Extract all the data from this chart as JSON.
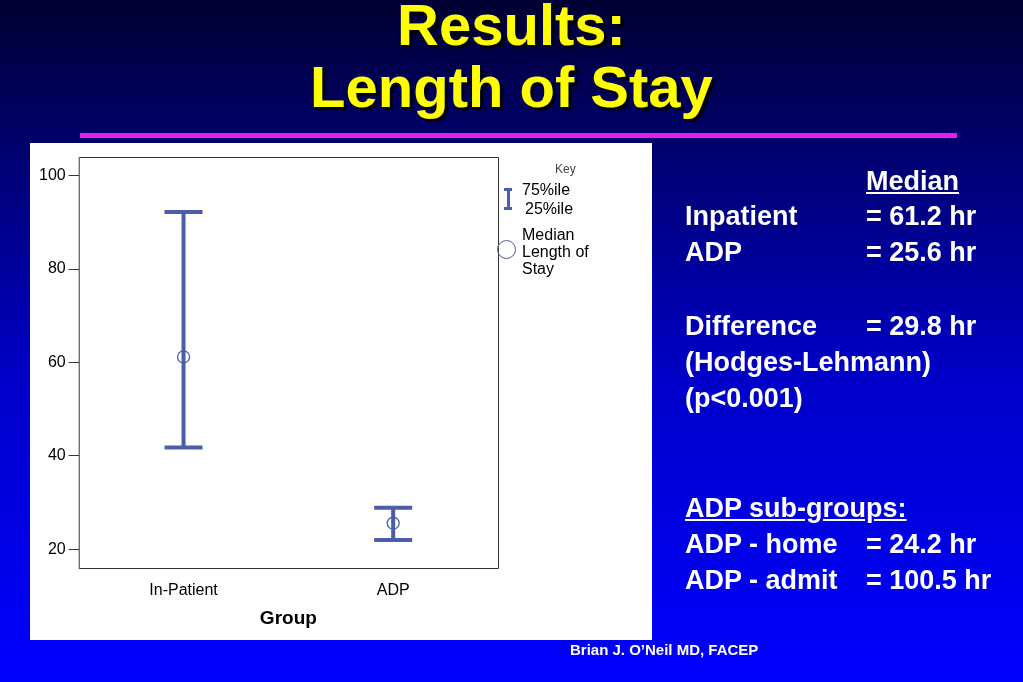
{
  "chart_data": {
    "type": "scatter",
    "title": "Results:\nLength of Stay",
    "xlabel": "Group",
    "legend_title": "Key",
    "categories": [
      "In-Patient",
      "ADP"
    ],
    "series": [
      {
        "name": "Median Length of Stay",
        "color": "#4a5fa8",
        "values": [
          61.2,
          25.6
        ],
        "errors": [
          [
            41.8,
            92.2
          ],
          [
            22,
            28.9
          ]
        ]
      }
    ],
    "ylim": [
      16,
      104
    ],
    "yticks": [
      20,
      40,
      60,
      80,
      100
    ],
    "grid": false,
    "legend": "right",
    "marker": "circle",
    "annotations": [
      "Median",
      "Inpatient",
      "= 61.2 hr",
      "ADP",
      "= 25.6 hr",
      "Difference",
      "= 29.8 hr",
      "(Hodges-Lehmann)",
      "(p<0.001)",
      "ADP sub-groups:",
      "ADP - home",
      "= 24.2 hr",
      "ADP - admit",
      "= 100.5 hr",
      "Brian J. O’Neil MD, FACEP",
      "75%ile",
      "25%ile"
    ]
  }
}
